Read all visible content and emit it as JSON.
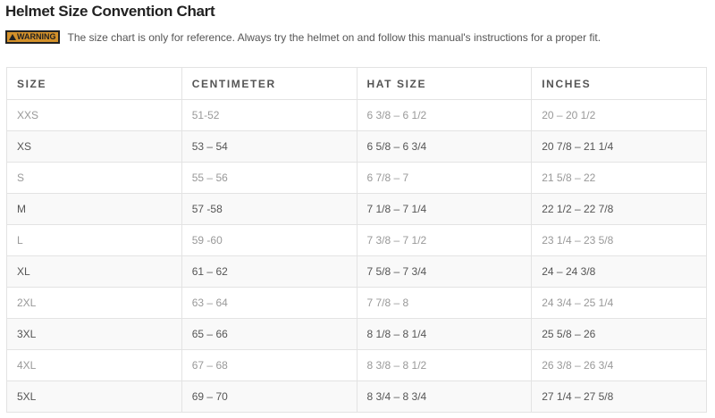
{
  "title": "Helmet Size Convention Chart",
  "warning": {
    "badge": "WARNING",
    "icon": "warning-triangle-icon",
    "color": "#d4912a",
    "message": "The size chart is only for reference. Always try the helmet on and follow this manual's instructions for a proper fit."
  },
  "table": {
    "headers": [
      "SIZE",
      "CENTIMETER",
      "HAT SIZE",
      "INCHES"
    ],
    "rows": [
      [
        "XXS",
        "51-52",
        "6 3/8 – 6 1/2",
        "20 – 20 1/2"
      ],
      [
        "XS",
        "53 – 54",
        "6 5/8 – 6 3/4",
        "20 7/8 – 21 1/4"
      ],
      [
        "S",
        "55 – 56",
        "6 7/8 – 7",
        "21 5/8 – 22"
      ],
      [
        "M",
        "57 -58",
        "7 1/8 – 7 1/4",
        "22 1/2 – 22 7/8"
      ],
      [
        "L",
        "59 -60",
        "7 3/8 – 7 1/2",
        "23 1/4 – 23 5/8"
      ],
      [
        "XL",
        "61 – 62",
        "7 5/8 – 7 3/4",
        "24 – 24 3/8"
      ],
      [
        "2XL",
        "63 – 64",
        "7 7/8 – 8",
        "24 3/4 – 25 1/4"
      ],
      [
        "3XL",
        "65 – 66",
        "8 1/8 – 8 1/4",
        "25 5/8 – 26"
      ],
      [
        "4XL",
        "67 – 68",
        "8 3/8 – 8 1/2",
        "26 3/8 – 26 3/4"
      ],
      [
        "5XL",
        "69 – 70",
        "8 3/4 – 8 3/4",
        "27 1/4 – 27 5/8"
      ]
    ]
  }
}
